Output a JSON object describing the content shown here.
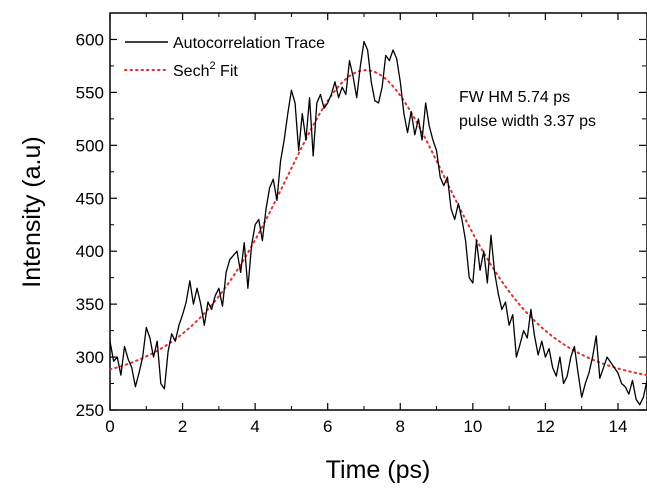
{
  "chart_data": {
    "type": "line",
    "xlabel": "Time (ps)",
    "ylabel": "Intensity (a.u)",
    "xlim": [
      0,
      14.8
    ],
    "ylim": [
      250,
      625
    ],
    "x_ticks": [
      0,
      2,
      4,
      6,
      8,
      10,
      12,
      14
    ],
    "y_ticks": [
      250,
      300,
      350,
      400,
      450,
      500,
      550,
      600
    ],
    "grid": false,
    "legend_position": "top-left",
    "annotations": [
      "FW HM 5.74 ps",
      "pulse width 3.37 ps"
    ],
    "series": [
      {
        "name": "Autocorrelation Trace",
        "style": "solid",
        "color": "#000000",
        "x": [
          0.0,
          0.1,
          0.2,
          0.3,
          0.4,
          0.5,
          0.6,
          0.7,
          0.8,
          0.9,
          1.0,
          1.1,
          1.2,
          1.3,
          1.4,
          1.5,
          1.6,
          1.7,
          1.8,
          1.9,
          2.0,
          2.1,
          2.2,
          2.3,
          2.4,
          2.5,
          2.6,
          2.7,
          2.8,
          2.9,
          3.0,
          3.1,
          3.2,
          3.3,
          3.4,
          3.5,
          3.6,
          3.7,
          3.8,
          3.9,
          4.0,
          4.1,
          4.2,
          4.3,
          4.4,
          4.5,
          4.6,
          4.7,
          4.8,
          4.9,
          5.0,
          5.1,
          5.2,
          5.3,
          5.4,
          5.5,
          5.6,
          5.7,
          5.8,
          5.9,
          6.0,
          6.1,
          6.2,
          6.3,
          6.4,
          6.5,
          6.6,
          6.7,
          6.8,
          6.9,
          7.0,
          7.1,
          7.2,
          7.3,
          7.4,
          7.5,
          7.6,
          7.7,
          7.8,
          7.9,
          8.0,
          8.1,
          8.2,
          8.3,
          8.4,
          8.5,
          8.6,
          8.7,
          8.8,
          8.9,
          9.0,
          9.1,
          9.2,
          9.3,
          9.4,
          9.5,
          9.6,
          9.7,
          9.8,
          9.9,
          10.0,
          10.1,
          10.2,
          10.3,
          10.4,
          10.5,
          10.6,
          10.7,
          10.8,
          10.9,
          11.0,
          11.1,
          11.2,
          11.3,
          11.4,
          11.5,
          11.6,
          11.7,
          11.8,
          11.9,
          12.0,
          12.1,
          12.2,
          12.3,
          12.4,
          12.5,
          12.6,
          12.7,
          12.8,
          12.9,
          13.0,
          13.1,
          13.2,
          13.3,
          13.4,
          13.5,
          13.6,
          13.7,
          13.8,
          13.9,
          14.0,
          14.1,
          14.2,
          14.3,
          14.4,
          14.5,
          14.6,
          14.7,
          14.8
        ],
        "values": [
          315,
          296,
          300,
          283,
          310,
          298,
          290,
          272,
          285,
          300,
          328,
          318,
          300,
          315,
          275,
          270,
          305,
          322,
          315,
          330,
          340,
          352,
          372,
          350,
          365,
          350,
          330,
          352,
          345,
          358,
          365,
          348,
          380,
          392,
          396,
          400,
          380,
          408,
          365,
          405,
          425,
          430,
          410,
          440,
          460,
          468,
          448,
          485,
          505,
          530,
          552,
          540,
          495,
          530,
          505,
          545,
          490,
          540,
          548,
          535,
          540,
          548,
          560,
          545,
          555,
          548,
          580,
          565,
          545,
          575,
          598,
          590,
          560,
          542,
          540,
          555,
          585,
          580,
          590,
          582,
          560,
          530,
          512,
          532,
          510,
          525,
          505,
          540,
          518,
          505,
          495,
          470,
          462,
          470,
          440,
          430,
          445,
          430,
          410,
          375,
          370,
          410,
          382,
          400,
          370,
          415,
          380,
          360,
          345,
          352,
          330,
          340,
          300,
          312,
          325,
          318,
          345,
          320,
          302,
          315,
          300,
          308,
          290,
          282,
          300,
          275,
          282,
          300,
          310,
          285,
          262,
          275,
          285,
          300,
          320,
          280,
          290,
          300,
          295,
          290,
          285,
          275,
          272,
          265,
          278,
          260,
          255,
          262,
          278
        ]
      },
      {
        "name": "Sech2 Fit",
        "style": "dotted",
        "color": "#e03030",
        "fn": "sech2",
        "baseline": 273,
        "amplitude": 298,
        "center": 7.05,
        "fwhm": 5.74
      }
    ]
  }
}
